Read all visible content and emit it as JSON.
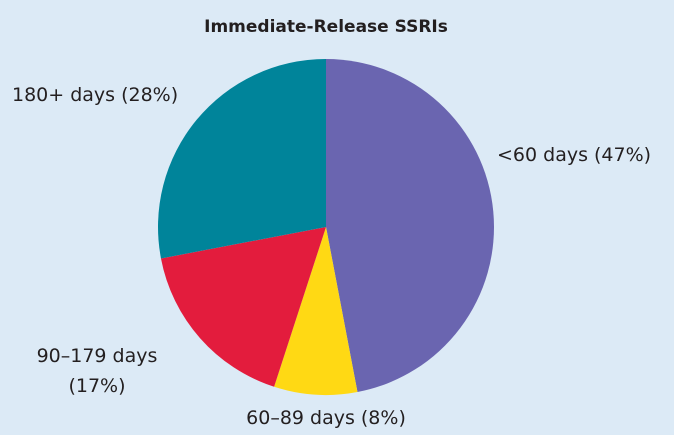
{
  "chart_data": {
    "type": "pie",
    "title": "Immediate-Release SSRIs",
    "categories": [
      "<60 days",
      "60–89 days",
      "90–179 days",
      "180+ days"
    ],
    "values": [
      47,
      8,
      17,
      28
    ],
    "value_labels": [
      "(47%)",
      "(8%)",
      "(17%)",
      "(28%)"
    ],
    "colors": [
      "#6a65b0",
      "#ffd914",
      "#e31c3d",
      "#00849a"
    ]
  }
}
